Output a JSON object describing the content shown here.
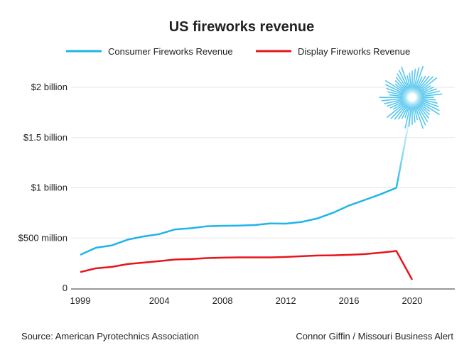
{
  "chart_data": {
    "type": "line",
    "title": "US fireworks revenue",
    "legend_position": "top",
    "grid": true,
    "x": [
      1999,
      2000,
      2001,
      2002,
      2003,
      2004,
      2005,
      2006,
      2007,
      2008,
      2009,
      2010,
      2011,
      2012,
      2013,
      2014,
      2015,
      2016,
      2017,
      2018,
      2019,
      2020
    ],
    "xlim": [
      1999,
      2020
    ],
    "ylim": [
      0,
      2000000000
    ],
    "x_ticks": [
      "1999",
      "2004",
      "2008",
      "2012",
      "2016",
      "2020"
    ],
    "x_tick_values": [
      1999,
      2004,
      2008,
      2012,
      2016,
      2020
    ],
    "y_ticks": [
      "0",
      "$500 million",
      "$1 billion",
      "$1.5 billion",
      "$2 billion"
    ],
    "y_tick_values": [
      0,
      500000000,
      1000000000,
      1500000000,
      2000000000
    ],
    "series": [
      {
        "name": "Consumer Fireworks Revenue",
        "color": "#1fb4ea",
        "unit": "USD",
        "values": [
          333000000,
          404000000,
          427000000,
          484000000,
          516000000,
          539000000,
          586000000,
          597000000,
          617000000,
          622000000,
          624000000,
          629000000,
          645000000,
          643000000,
          660000000,
          695000000,
          752000000,
          823000000,
          879000000,
          936000000,
          1000000000,
          1900000000
        ]
      },
      {
        "name": "Display Fireworks Revenue",
        "color": "#e8141b",
        "unit": "USD",
        "values": [
          161000000,
          199000000,
          213000000,
          241000000,
          255000000,
          270000000,
          286000000,
          291000000,
          300000000,
          305000000,
          307000000,
          307000000,
          307000000,
          312000000,
          319000000,
          326000000,
          328000000,
          333000000,
          340000000,
          354000000,
          371000000,
          85000000
        ]
      }
    ],
    "annotation": "firework-burst at 2020 consumer value"
  },
  "footer": {
    "source": "Source: American Pyrotechnics Association",
    "credit": "Connor Giffin / Missouri Business Alert"
  }
}
